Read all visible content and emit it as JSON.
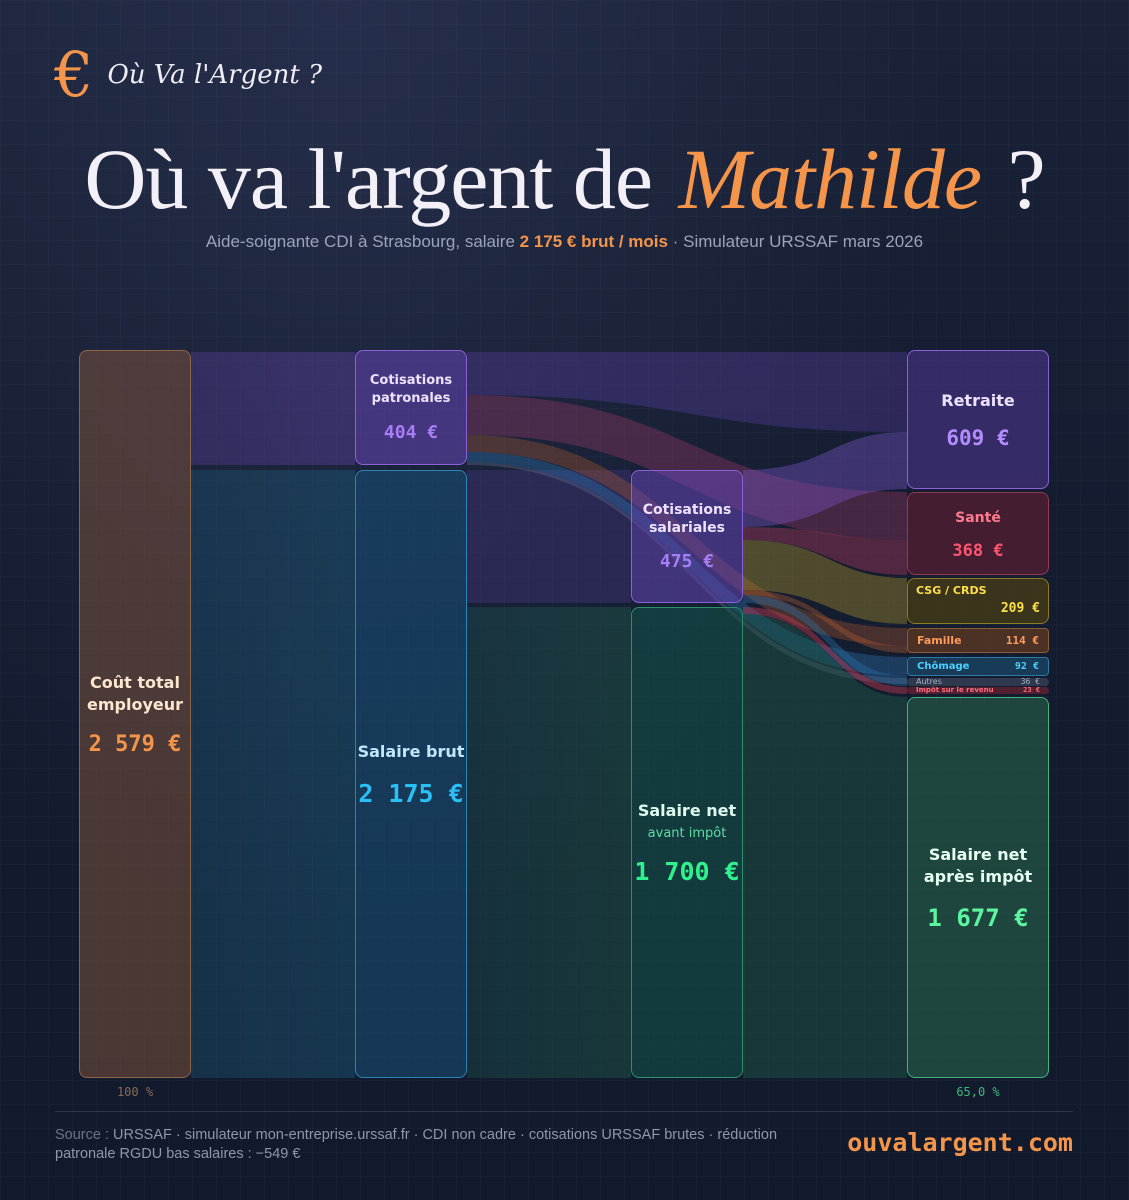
{
  "brand": {
    "icon": "euro-icon",
    "icon_glyph": "€",
    "name": "Où Va l'Argent ?"
  },
  "title": {
    "prefix": "Où va l'argent de",
    "name": "Mathilde",
    "suffix": "?"
  },
  "subtitle": {
    "part1": "Aide-soignante CDI à Strasbourg, salaire",
    "highlight": "2 175 € brut / mois",
    "part2": "· Simulateur URSSAF mars 2026"
  },
  "sankey": {
    "nodes": {
      "cout_total": {
        "label": "Coût total employeur",
        "value": "2 579 €",
        "amount": 2579
      },
      "cotisations_patronales": {
        "label": "Cotisations patronales",
        "value": "404 €",
        "amount": 404
      },
      "salaire_brut": {
        "label": "Salaire brut",
        "value": "2 175 €",
        "amount": 2175
      },
      "cotisations_salariales": {
        "label": "Cotisations salariales",
        "value": "475 €",
        "amount": 475
      },
      "salaire_net": {
        "label": "Salaire net",
        "sublabel": "avant impôt",
        "value": "1 700 €",
        "amount": 1700
      },
      "retraite": {
        "label": "Retraite",
        "value": "609 €",
        "amount": 609
      },
      "sante": {
        "label": "Santé",
        "value": "368 €",
        "amount": 368
      },
      "csg": {
        "label": "CSG / CRDS",
        "value": "209 €",
        "amount": 209
      },
      "famille": {
        "label": "Famille",
        "value": "114 €",
        "amount": 114
      },
      "chomage": {
        "label": "Chômage",
        "value": "92 €",
        "amount": 92
      },
      "autres": {
        "label": "Autres",
        "value": "36 €",
        "amount": 36
      },
      "impot": {
        "label": "Impôt sur le revenu",
        "value": "23 €",
        "amount": 23
      },
      "net_apres_impot": {
        "label": "Salaire net après impôt",
        "value": "1 677 €",
        "amount": 1677
      }
    },
    "percent_left": "100 %",
    "percent_right": "65,0 %",
    "colors": {
      "employer": "#f5954a",
      "cotisations": "#a77ef5",
      "brut": "#29c0f5",
      "net": "#2ef28e",
      "sante": "#ff5570",
      "csg": "#ffe04a",
      "famille": "#ff9c5c",
      "chomage": "#4dd0ff"
    }
  },
  "footer": {
    "source_label": "Source :",
    "source_text": "URSSAF · simulateur mon-entreprise.urssaf.fr · CDI non cadre · cotisations URSSAF brutes · réduction patronale RGDU bas salaires : −549 €",
    "site": "ouvalargent.com"
  }
}
